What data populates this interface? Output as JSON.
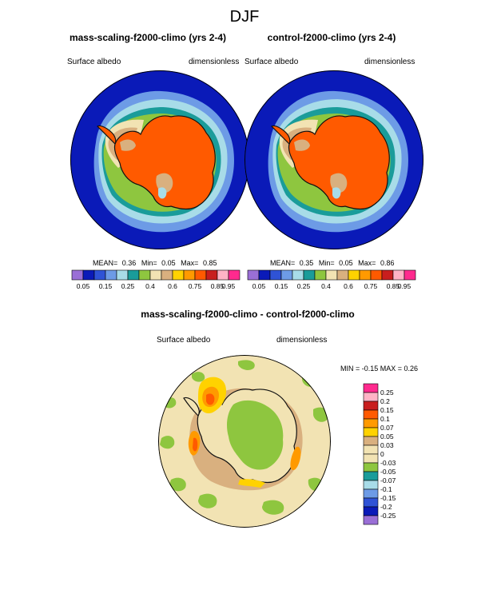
{
  "page": {
    "title": "DJF"
  },
  "chart_data": [
    {
      "type": "heatmap",
      "projection": "south-polar stereographic",
      "title": "mass-scaling-f2000-climo (yrs 2-4)",
      "left_label": "Surface albedo",
      "right_label": "dimensionless",
      "stats": {
        "mean_label": "MEAN=",
        "mean": "0.36",
        "min_label": "Min=",
        "min": "0.05",
        "max_label": "Max=",
        "max": "0.85"
      },
      "colorbar": {
        "orientation": "horizontal",
        "labels": [
          "0.05",
          "0.15",
          "0.25",
          "0.4",
          "0.6",
          "0.75",
          "0.85",
          "0.95"
        ],
        "colors": [
          "#9a6fd6",
          "#0a1ab8",
          "#2f53d6",
          "#6d9be6",
          "#a8dce8",
          "#1a9c9a",
          "#8ec63f",
          "#f2e3b3",
          "#d9b07f",
          "#ffd200",
          "#ff9a00",
          "#ff5a00",
          "#c81e1e",
          "#ffb3c6",
          "#ff2a8e"
        ]
      }
    },
    {
      "type": "heatmap",
      "projection": "south-polar stereographic",
      "title": "control-f2000-climo (yrs 2-4)",
      "left_label": "Surface albedo",
      "right_label": "dimensionless",
      "stats": {
        "mean_label": "MEAN=",
        "mean": "0.35",
        "min_label": "Min=",
        "min": "0.05",
        "max_label": "Max=",
        "max": "0.86"
      },
      "colorbar": {
        "orientation": "horizontal",
        "labels": [
          "0.05",
          "0.15",
          "0.25",
          "0.4",
          "0.6",
          "0.75",
          "0.85",
          "0.95"
        ],
        "colors": [
          "#9a6fd6",
          "#0a1ab8",
          "#2f53d6",
          "#6d9be6",
          "#a8dce8",
          "#1a9c9a",
          "#8ec63f",
          "#f2e3b3",
          "#d9b07f",
          "#ffd200",
          "#ff9a00",
          "#ff5a00",
          "#c81e1e",
          "#ffb3c6",
          "#ff2a8e"
        ]
      }
    },
    {
      "type": "heatmap",
      "projection": "south-polar stereographic",
      "title": "mass-scaling-f2000-climo - control-f2000-climo",
      "left_label": "Surface albedo",
      "right_label": "dimensionless",
      "stats": {
        "text": "MIN = -0.15 MAX = 0.26"
      },
      "colorbar": {
        "orientation": "vertical",
        "labels": [
          "0.25",
          "0.2",
          "0.15",
          "0.1",
          "0.07",
          "0.05",
          "0.03",
          "0",
          "-0.03",
          "-0.05",
          "-0.07",
          "-0.1",
          "-0.15",
          "-0.2",
          "-0.25"
        ],
        "colors": [
          "#ff2a8e",
          "#ffb3c6",
          "#c81e1e",
          "#ff5a00",
          "#ff9a00",
          "#ffd200",
          "#d9b07f",
          "#f2e3b3",
          "#f2e3b3",
          "#8ec63f",
          "#1a9c9a",
          "#a8dce8",
          "#6d9be6",
          "#2f53d6",
          "#0a1ab8",
          "#9a6fd6"
        ]
      }
    }
  ]
}
